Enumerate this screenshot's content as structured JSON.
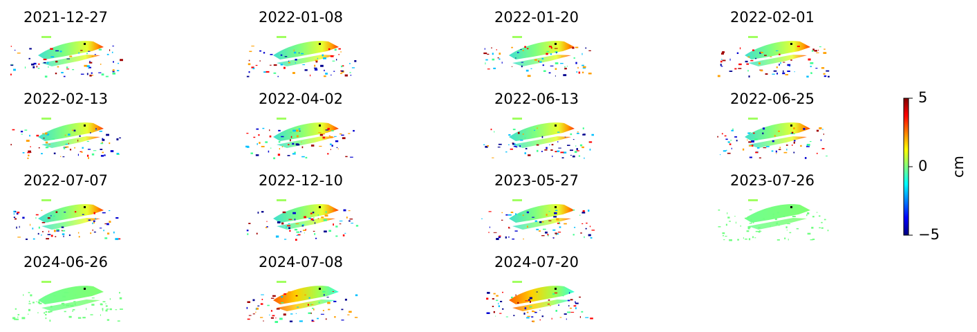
{
  "chart_data": {
    "type": "image-grid",
    "panels": [
      "2021-12-27",
      "2022-01-08",
      "2022-01-20",
      "2022-02-01",
      "2022-02-13",
      "2022-04-02",
      "2022-06-13",
      "2022-06-25",
      "2022-07-07",
      "2022-12-10",
      "2023-05-27",
      "2023-07-26",
      "2024-06-26",
      "2024-07-08",
      "2024-07-20"
    ],
    "colorbar": {
      "label": "cm",
      "lim": [
        -5,
        5
      ],
      "ticks": [
        {
          "value": -5,
          "label": "−5"
        },
        0,
        5
      ]
    }
  }
}
